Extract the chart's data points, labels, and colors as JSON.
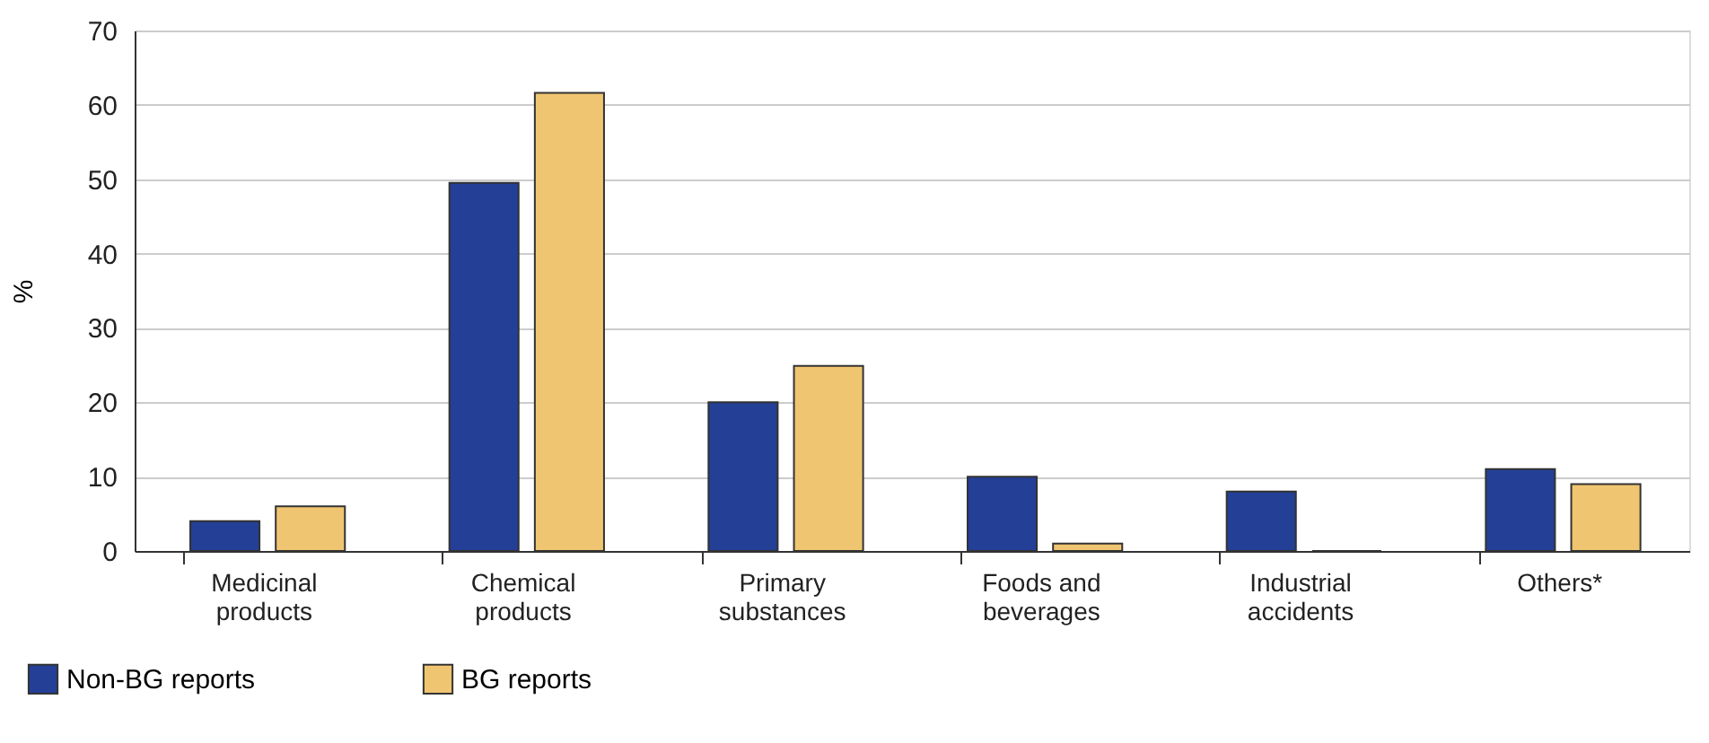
{
  "chart_data": {
    "type": "bar",
    "ylabel": "%",
    "categories": [
      "Medicinal products",
      "Chemical products",
      "Primary substances",
      "Foods and beverages",
      "Industrial accidents",
      "Others*"
    ],
    "series": [
      {
        "name": "Non-BG reports",
        "color": "#233f96",
        "values": [
          4,
          49.5,
          20,
          10,
          8,
          11
        ]
      },
      {
        "name": "BG reports",
        "color": "#f0c571",
        "values": [
          6,
          61.6,
          24.9,
          1,
          0,
          9
        ]
      }
    ],
    "ylim": [
      0,
      70
    ],
    "yticks": [
      0,
      10,
      20,
      30,
      40,
      50,
      60,
      70
    ],
    "grid": "y",
    "legend": "bottom left"
  }
}
